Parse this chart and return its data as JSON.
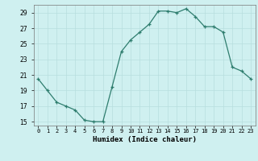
{
  "x": [
    0,
    1,
    2,
    3,
    4,
    5,
    6,
    7,
    8,
    9,
    10,
    11,
    12,
    13,
    14,
    15,
    16,
    17,
    18,
    19,
    20,
    21,
    22,
    23
  ],
  "y": [
    20.5,
    19.0,
    17.5,
    17.0,
    16.5,
    15.2,
    15.0,
    15.0,
    19.5,
    24.0,
    25.5,
    26.5,
    27.5,
    29.2,
    29.2,
    29.0,
    29.5,
    28.5,
    27.2,
    27.2,
    26.5,
    22.0,
    21.5,
    20.5
  ],
  "xlim": [
    -0.5,
    23.5
  ],
  "ylim": [
    14.5,
    30.0
  ],
  "yticks": [
    15,
    17,
    19,
    21,
    23,
    25,
    27,
    29
  ],
  "xtick_labels": [
    "0",
    "1",
    "2",
    "3",
    "4",
    "5",
    "6",
    "7",
    "8",
    "9",
    "10",
    "11",
    "12",
    "13",
    "14",
    "15",
    "16",
    "17",
    "18",
    "19",
    "20",
    "21",
    "22",
    "23"
  ],
  "xlabel": "Humidex (Indice chaleur)",
  "line_color": "#2e7d6e",
  "marker": "+",
  "bg_color": "#cff0f0",
  "grid_color": "#b8dede",
  "title": ""
}
